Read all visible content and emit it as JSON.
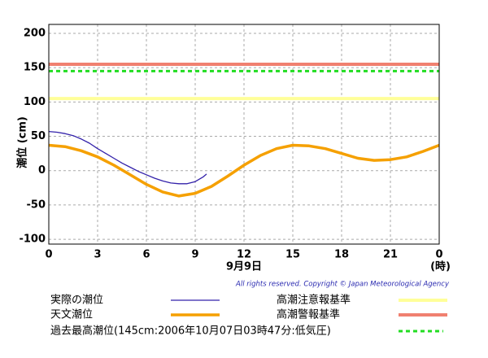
{
  "chart_data": {
    "type": "line",
    "y_label": "潮位 (cm)",
    "x_label": "9月9日",
    "x_unit": "(時)",
    "copyright": "All rights reserved. Copyright © Japan Meteorological Agency",
    "xlim": [
      0,
      24
    ],
    "xticks": [
      0,
      3,
      6,
      9,
      12,
      15,
      18,
      21,
      {
        "value": 24,
        "label": "0"
      }
    ],
    "ylim": [
      -107,
      213
    ],
    "yticks": [
      -100,
      -50,
      0,
      50,
      100,
      150,
      200
    ],
    "grid": true,
    "series": [
      {
        "name": "実際の潮位",
        "color": "#3322aa",
        "x": [
          0,
          0.5,
          1,
          1.5,
          2,
          2.5,
          3,
          3.5,
          4,
          4.5,
          5,
          5.5,
          6,
          6.5,
          7,
          7.5,
          8,
          8.5,
          9,
          9.5,
          9.7
        ],
        "values": [
          57,
          56,
          54,
          51,
          46,
          40,
          32,
          25,
          18,
          11,
          5,
          -1,
          -6,
          -11,
          -15,
          -18,
          -19,
          -19,
          -16,
          -9,
          -5
        ]
      },
      {
        "name": "天文潮位",
        "color": "#f5a000",
        "x": [
          0,
          1,
          2,
          3,
          4,
          5,
          6,
          7,
          8,
          9,
          10,
          11,
          12,
          13,
          14,
          15,
          16,
          17,
          18,
          19,
          20,
          21,
          22,
          23,
          24
        ],
        "values": [
          37,
          35,
          29,
          20,
          8,
          -6,
          -20,
          -31,
          -37,
          -33,
          -23,
          -8,
          8,
          22,
          32,
          37,
          36,
          32,
          25,
          18,
          15,
          16,
          20,
          28,
          37
        ]
      }
    ],
    "reference_lines": [
      {
        "name": "高潮注意報基準",
        "color": "#ffff99",
        "value": 105,
        "dashed": false
      },
      {
        "name": "高潮警報基準",
        "color": "#f08070",
        "value": 155,
        "dashed": false
      },
      {
        "name": "過去最高潮位(145cm:2006年10月07日03時47分:低気圧)",
        "color": "#22dd22",
        "value": 145,
        "dashed": true
      }
    ]
  }
}
